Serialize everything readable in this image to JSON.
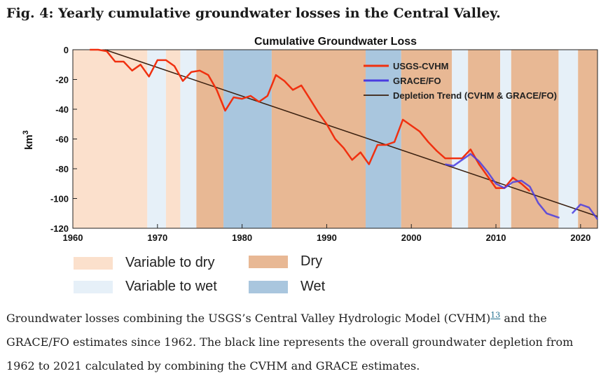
{
  "figure": {
    "title": "Fig. 4: Yearly cumulative groundwater losses in the Central Valley."
  },
  "colors": {
    "var_dry": "#fbe0cc",
    "var_wet": "#e6f0f8",
    "dry": "#e8b894",
    "wet": "#a9c6de",
    "cvhm": "#f03010",
    "grace": "#4a3ce0",
    "trend": "#3a2010"
  },
  "chart_data": {
    "type": "line",
    "title": "Cumulative Groundwater Loss",
    "xlabel": "",
    "ylabel": "km",
    "ylabel_superscript": "3",
    "xlim": [
      1960,
      2022
    ],
    "ylim": [
      -120,
      0
    ],
    "xticks": [
      1960,
      1970,
      1980,
      1990,
      2000,
      2010,
      2020
    ],
    "yticks": [
      0,
      -20,
      -40,
      -60,
      -80,
      -100,
      -120
    ],
    "legend_position": "top-right",
    "climate_periods": [
      {
        "start": 1960,
        "end": 1968.8,
        "type": "var_dry"
      },
      {
        "start": 1968.8,
        "end": 1971,
        "type": "var_wet"
      },
      {
        "start": 1971,
        "end": 1972.7,
        "type": "var_dry"
      },
      {
        "start": 1972.7,
        "end": 1974.6,
        "type": "var_wet"
      },
      {
        "start": 1974.6,
        "end": 1977.8,
        "type": "dry"
      },
      {
        "start": 1977.8,
        "end": 1983.5,
        "type": "wet"
      },
      {
        "start": 1983.5,
        "end": 1994.6,
        "type": "dry"
      },
      {
        "start": 1994.6,
        "end": 1998.8,
        "type": "wet"
      },
      {
        "start": 1998.8,
        "end": 2004.8,
        "type": "dry"
      },
      {
        "start": 2004.8,
        "end": 2006.7,
        "type": "var_wet"
      },
      {
        "start": 2006.7,
        "end": 2010.5,
        "type": "dry"
      },
      {
        "start": 2010.5,
        "end": 2011.8,
        "type": "var_wet"
      },
      {
        "start": 2011.8,
        "end": 2017.4,
        "type": "dry"
      },
      {
        "start": 2017.4,
        "end": 2019.7,
        "type": "var_wet"
      },
      {
        "start": 2019.7,
        "end": 2022,
        "type": "dry"
      }
    ],
    "series": [
      {
        "name": "USGS-CVHM",
        "color_key": "cvhm",
        "x": [
          1962,
          1963,
          1964,
          1965,
          1966,
          1967,
          1968,
          1969,
          1970,
          1971,
          1972,
          1973,
          1974,
          1975,
          1976,
          1977,
          1978,
          1979,
          1980,
          1981,
          1982,
          1983,
          1984,
          1985,
          1986,
          1987,
          1988,
          1989,
          1990,
          1991,
          1992,
          1993,
          1994,
          1995,
          1996,
          1997,
          1998,
          1999,
          2000,
          2001,
          2002,
          2003,
          2004,
          2005,
          2006,
          2007,
          2008,
          2009,
          2010,
          2011,
          2012,
          2013,
          2014
        ],
        "y": [
          0,
          0,
          -1,
          -8,
          -8,
          -14,
          -10,
          -18,
          -7,
          -7,
          -11,
          -21,
          -15,
          -14,
          -17,
          -27,
          -41,
          -32,
          -33,
          -31,
          -35,
          -31,
          -17,
          -21,
          -27,
          -24,
          -33,
          -42,
          -50,
          -60,
          -66,
          -74,
          -69,
          -77,
          -64,
          -64,
          -62,
          -47,
          -51,
          -55,
          -62,
          -68,
          -73,
          -73,
          -73,
          -67,
          -77,
          -85,
          -93,
          -93,
          -86,
          -90,
          -95
        ]
      },
      {
        "name": "GRACE/FO",
        "color_key": "grace",
        "x": [
          2004,
          2005,
          2006,
          2007,
          2008,
          2009,
          2010,
          2011,
          2012,
          2013,
          2014,
          2015,
          2016,
          2017.5
        ],
        "y": [
          -77,
          -78,
          -74,
          -70,
          -75,
          -82,
          -90,
          -93,
          -89,
          -88,
          -92,
          -103,
          -110,
          -113
        ],
        "x2": [
          2019,
          2020,
          2021,
          2022
        ],
        "y2": [
          -110,
          -104,
          -106,
          -114
        ]
      },
      {
        "name": "Depletion Trend (CVHM & GRACE/FO)",
        "color_key": "trend",
        "x": [
          1963.8,
          2022
        ],
        "y": [
          0,
          -112
        ]
      }
    ]
  },
  "legend_bottom": [
    {
      "label": "Variable to dry",
      "color_key": "var_dry"
    },
    {
      "label": "Dry",
      "color_key": "dry"
    },
    {
      "label": "Variable to wet",
      "color_key": "var_wet"
    },
    {
      "label": "Wet",
      "color_key": "wet"
    }
  ],
  "caption": {
    "part1": "Groundwater losses combining the USGS’s Central Valley Hydrologic Model (CVHM)",
    "ref": "13",
    "part2": " and the GRACE/FO estimates since 1962. The black line represents the overall groundwater depletion from 1962 to 2021 calculated by combining the CVHM and GRACE estimates."
  }
}
